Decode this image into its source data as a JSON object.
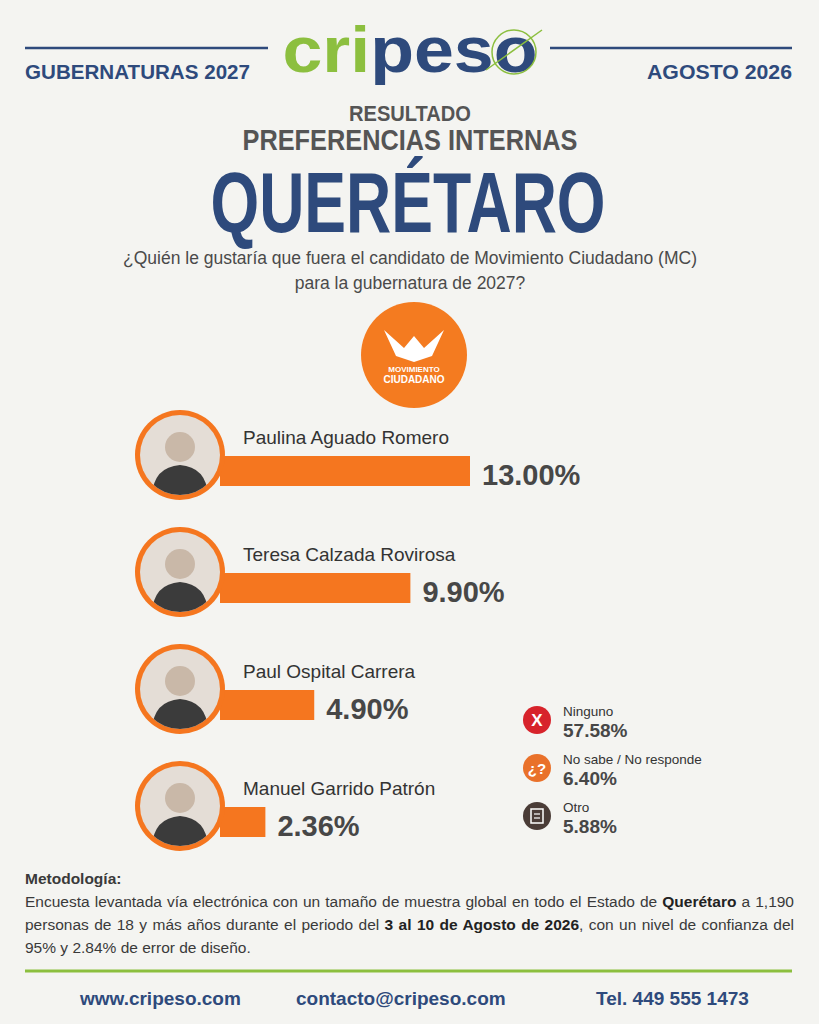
{
  "header": {
    "left": "GUBERNATURAS 2027",
    "right": "AGOSTO 2026",
    "logo": "cripeso",
    "kicker": "RESULTADO",
    "subtitle": "PREFERENCIAS INTERNAS",
    "title": "QUERÉTARO",
    "question": [
      "¿Quién le gustaría que fuera el candidato de Movimiento Ciudadano (MC)",
      "para la gubernatura de 2027?"
    ],
    "party_logo": [
      "MOVIMIENTO",
      "CIUDADANO"
    ]
  },
  "chart_data": {
    "type": "bar",
    "orientation": "horizontal",
    "categories": [
      "Paulina Aguado Romero",
      "Teresa Calzada Rovirosa",
      "Paul Ospital Carrera",
      "Manuel Garrido Patrón"
    ],
    "values": [
      13.0,
      9.9,
      4.9,
      2.36
    ],
    "value_labels": [
      "13.00%",
      "9.90%",
      "4.90%",
      "2.36%"
    ],
    "data_labels": true,
    "tick_labels": false,
    "xlim": [
      0,
      13
    ],
    "color": "#f5761f",
    "grid": false,
    "other_responses": [
      {
        "label": "Ninguno",
        "value": 57.58,
        "value_label": "57.58%",
        "icon": "X",
        "color": "#d7232b"
      },
      {
        "label": "No sabe / No responde",
        "value": 6.4,
        "value_label": "6.40%",
        "icon": "¿?",
        "color": "#e9712a"
      },
      {
        "label": "Otro",
        "value": 5.88,
        "value_label": "5.88%",
        "color": "#4a3c37"
      }
    ]
  },
  "methodology_title": "Metodología:",
  "methodology": [
    {
      "text": "Encuesta levantada vía electrónica con un tamaño de muestra global en todo el Estado de ",
      "bold": false
    },
    {
      "text": "Querétaro",
      "bold": true
    },
    {
      "text": " a 1,190 personas de 18 y más años durante el periodo del ",
      "bold": false
    },
    {
      "text": "3 al 10 de Agosto de 2026",
      "bold": true
    },
    {
      "text": ", con un nivel de confianza del 95% y 2.84% de error de diseño.",
      "bold": false
    }
  ],
  "footer": [
    "www.cripeso.com",
    "contacto@cripeso.com",
    "Tel. 449 555 1473"
  ]
}
